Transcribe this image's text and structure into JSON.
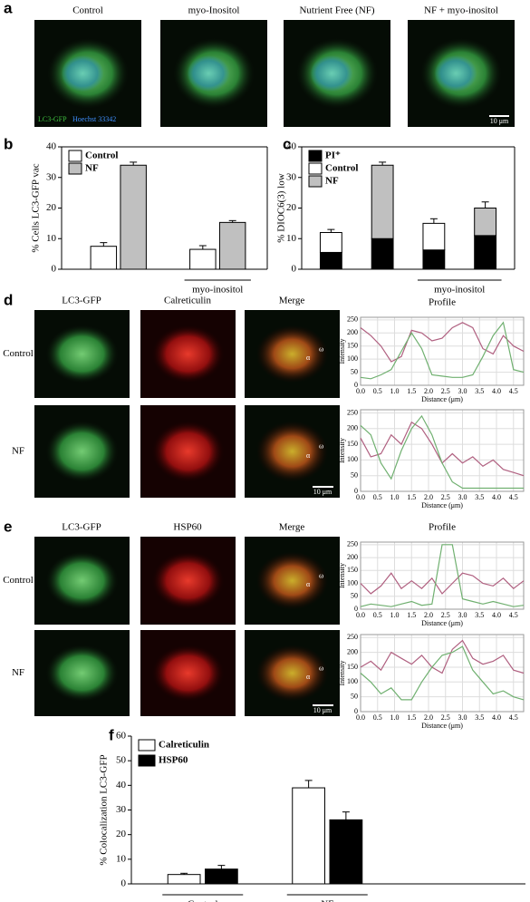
{
  "panel_a": {
    "letter": "a",
    "titles": [
      "Control",
      "myo-Inositol",
      "Nutrient Free (NF)",
      "NF + myo-inositol"
    ],
    "stains": [
      "LC3-GFP",
      "Hoechst 33342"
    ],
    "scale_bar": "10 μm"
  },
  "panel_d": {
    "letter": "d",
    "columns": [
      "LC3-GFP",
      "Calreticulin",
      "Merge"
    ],
    "rows": [
      "Control",
      "NF"
    ],
    "markers": [
      "ω",
      "α"
    ],
    "scale_bar": "10 μm"
  },
  "panel_e": {
    "letter": "e",
    "columns": [
      "LC3-GFP",
      "HSP60",
      "Merge"
    ],
    "rows": [
      "Control",
      "NF"
    ],
    "markers": [
      "ω",
      "α"
    ],
    "scale_bar": "10 μm"
  },
  "chart_data": [
    {
      "type": "bar",
      "panel": "b",
      "ylabel": "% Cells LC3-GFP vac",
      "categories": [
        null,
        "myo-inositol"
      ],
      "series": [
        {
          "name": "Control",
          "color": "#ffffff",
          "values": [
            7.5,
            6.5
          ],
          "errors": [
            1.2,
            1.2
          ]
        },
        {
          "name": "NF",
          "color": "#c0c0c0",
          "values": [
            34,
            15.3
          ],
          "errors": [
            1,
            0.6
          ]
        }
      ],
      "ylim": [
        0,
        40
      ],
      "yticks": [
        0,
        10,
        20,
        30,
        40
      ],
      "legend": "upper left"
    },
    {
      "type": "stackedbar",
      "panel": "c",
      "ylabel": "% DIOC6(3) low",
      "categories": [
        null,
        null,
        null,
        null
      ],
      "group_label": "myo-inositol",
      "series": [
        {
          "name": "PI⁺",
          "color": "#000000",
          "values": [
            5.5,
            10,
            6.3,
            11
          ],
          "errors": [
            1,
            0.5,
            0.7,
            1
          ]
        },
        {
          "name": "Control",
          "color": "#ffffff",
          "values": [
            6.5,
            null,
            8.7,
            null
          ],
          "errors": [
            1,
            null,
            1.5,
            null
          ]
        },
        {
          "name": "NF",
          "color": "#c0c0c0",
          "values": [
            null,
            24,
            null,
            9
          ],
          "errors": [
            null,
            1,
            null,
            2
          ]
        }
      ],
      "ylim": [
        0,
        40
      ],
      "yticks": [
        0,
        10,
        20,
        30,
        40
      ],
      "legend": "upper left"
    },
    {
      "type": "line",
      "title": "Profile",
      "xlabel": "Distance (μm)",
      "ylabel": "Intensity",
      "x": [
        0,
        0.3,
        0.6,
        0.9,
        1.2,
        1.5,
        1.8,
        2.1,
        2.4,
        2.7,
        3.0,
        3.3,
        3.6,
        3.9,
        4.2,
        4.5,
        4.8
      ],
      "series": [
        {
          "color": "#b06080",
          "values": [
            220,
            190,
            150,
            90,
            110,
            210,
            200,
            170,
            180,
            220,
            240,
            220,
            140,
            120,
            190,
            150,
            130
          ]
        },
        {
          "color": "#70b070",
          "values": [
            30,
            25,
            40,
            60,
            130,
            200,
            140,
            40,
            35,
            30,
            30,
            40,
            110,
            190,
            240,
            60,
            50
          ]
        }
      ],
      "xlim": [
        0,
        4.8
      ],
      "ylim": [
        0,
        260
      ],
      "xticks": [
        {
          "value": 0,
          "label": "0.0"
        },
        {
          "value": 0.5,
          "label": "0.5"
        },
        {
          "value": 1,
          "label": "1.0"
        },
        {
          "value": 1.5,
          "label": "1.5"
        },
        {
          "value": 2,
          "label": "2.0"
        },
        {
          "value": 2.5,
          "label": "2.5"
        },
        {
          "value": 3,
          "label": "3.0"
        },
        {
          "value": 3.5,
          "label": "3.5"
        },
        {
          "value": 4,
          "label": "4.0"
        },
        {
          "value": 4.5,
          "label": "4.5"
        }
      ],
      "yticks": [
        0,
        50,
        100,
        150,
        200,
        250
      ],
      "grid": true
    },
    {
      "type": "line",
      "xlabel": "Distance (μm)",
      "ylabel": "Intensity",
      "x": [
        0,
        0.3,
        0.6,
        0.9,
        1.2,
        1.5,
        1.8,
        2.1,
        2.4,
        2.7,
        3.0,
        3.3,
        3.6,
        3.9,
        4.2,
        4.5,
        4.8
      ],
      "series": [
        {
          "color": "#b06080",
          "values": [
            170,
            110,
            120,
            180,
            150,
            220,
            200,
            150,
            90,
            120,
            90,
            110,
            80,
            100,
            70,
            60,
            50
          ]
        },
        {
          "color": "#70b070",
          "values": [
            210,
            180,
            90,
            40,
            130,
            200,
            240,
            180,
            90,
            30,
            10,
            10,
            10,
            10,
            10,
            10,
            10
          ]
        }
      ],
      "xlim": [
        0,
        4.8
      ],
      "ylim": [
        0,
        260
      ],
      "xticks": [
        {
          "value": 0,
          "label": "0.0"
        },
        {
          "value": 0.5,
          "label": "0.5"
        },
        {
          "value": 1,
          "label": "1.0"
        },
        {
          "value": 1.5,
          "label": "1.5"
        },
        {
          "value": 2,
          "label": "2.0"
        },
        {
          "value": 2.5,
          "label": "2.5"
        },
        {
          "value": 3,
          "label": "3.0"
        },
        {
          "value": 3.5,
          "label": "3.5"
        },
        {
          "value": 4,
          "label": "4.0"
        },
        {
          "value": 4.5,
          "label": "4.5"
        }
      ],
      "yticks": [
        0,
        50,
        100,
        150,
        200,
        250
      ],
      "grid": true
    },
    {
      "type": "line",
      "title": "Profile",
      "xlabel": "Distance (μm)",
      "ylabel": "Intensity",
      "x": [
        0,
        0.3,
        0.6,
        0.9,
        1.2,
        1.5,
        1.8,
        2.1,
        2.4,
        2.7,
        3.0,
        3.3,
        3.6,
        3.9,
        4.2,
        4.5,
        4.8
      ],
      "series": [
        {
          "color": "#b06080",
          "values": [
            100,
            60,
            90,
            140,
            80,
            110,
            80,
            120,
            60,
            100,
            140,
            130,
            100,
            90,
            120,
            80,
            110
          ]
        },
        {
          "color": "#70b070",
          "values": [
            10,
            20,
            15,
            10,
            20,
            30,
            15,
            20,
            250,
            250,
            40,
            30,
            20,
            30,
            20,
            10,
            15
          ]
        }
      ],
      "xlim": [
        0,
        4.8
      ],
      "ylim": [
        0,
        260
      ],
      "xticks": [
        {
          "value": 0,
          "label": "0.0"
        },
        {
          "value": 0.5,
          "label": "0.5"
        },
        {
          "value": 1,
          "label": "1.0"
        },
        {
          "value": 1.5,
          "label": "1.5"
        },
        {
          "value": 2,
          "label": "2.0"
        },
        {
          "value": 2.5,
          "label": "2.5"
        },
        {
          "value": 3,
          "label": "3.0"
        },
        {
          "value": 3.5,
          "label": "3.5"
        },
        {
          "value": 4,
          "label": "4.0"
        },
        {
          "value": 4.5,
          "label": "4.5"
        }
      ],
      "yticks": [
        0,
        50,
        100,
        150,
        200,
        250
      ],
      "grid": true
    },
    {
      "type": "line",
      "xlabel": "Distance (μm)",
      "ylabel": "Intensity",
      "x": [
        0,
        0.3,
        0.6,
        0.9,
        1.2,
        1.5,
        1.8,
        2.1,
        2.4,
        2.7,
        3.0,
        3.3,
        3.6,
        3.9,
        4.2,
        4.5,
        4.8
      ],
      "series": [
        {
          "color": "#b06080",
          "values": [
            150,
            170,
            140,
            200,
            180,
            160,
            190,
            150,
            130,
            210,
            240,
            180,
            160,
            170,
            190,
            140,
            130
          ]
        },
        {
          "color": "#70b070",
          "values": [
            130,
            100,
            60,
            80,
            40,
            40,
            100,
            150,
            190,
            200,
            220,
            140,
            100,
            60,
            70,
            50,
            40
          ]
        }
      ],
      "xlim": [
        0,
        4.8
      ],
      "ylim": [
        0,
        260
      ],
      "xticks": [
        {
          "value": 0,
          "label": "0.0"
        },
        {
          "value": 0.5,
          "label": "0.5"
        },
        {
          "value": 1,
          "label": "1.0"
        },
        {
          "value": 1.5,
          "label": "1.5"
        },
        {
          "value": 2,
          "label": "2.0"
        },
        {
          "value": 2.5,
          "label": "2.5"
        },
        {
          "value": 3,
          "label": "3.0"
        },
        {
          "value": 3.5,
          "label": "3.5"
        },
        {
          "value": 4,
          "label": "4.0"
        },
        {
          "value": 4.5,
          "label": "4.5"
        }
      ],
      "yticks": [
        0,
        50,
        100,
        150,
        200,
        250
      ],
      "grid": true
    },
    {
      "type": "bar",
      "panel": "f",
      "ylabel": "% Colocalization LC3-GFP",
      "categories": [
        "Control",
        "NF"
      ],
      "series": [
        {
          "name": "Calreticulin",
          "color": "#ffffff",
          "values": [
            3.8,
            39
          ],
          "errors": [
            0.5,
            3
          ]
        },
        {
          "name": "HSP60",
          "color": "#000000",
          "values": [
            6,
            26
          ],
          "errors": [
            1.5,
            3.2
          ]
        }
      ],
      "ylim": [
        0,
        60
      ],
      "yticks": [
        0,
        10,
        20,
        30,
        40,
        50,
        60
      ],
      "legend": "upper left"
    }
  ]
}
